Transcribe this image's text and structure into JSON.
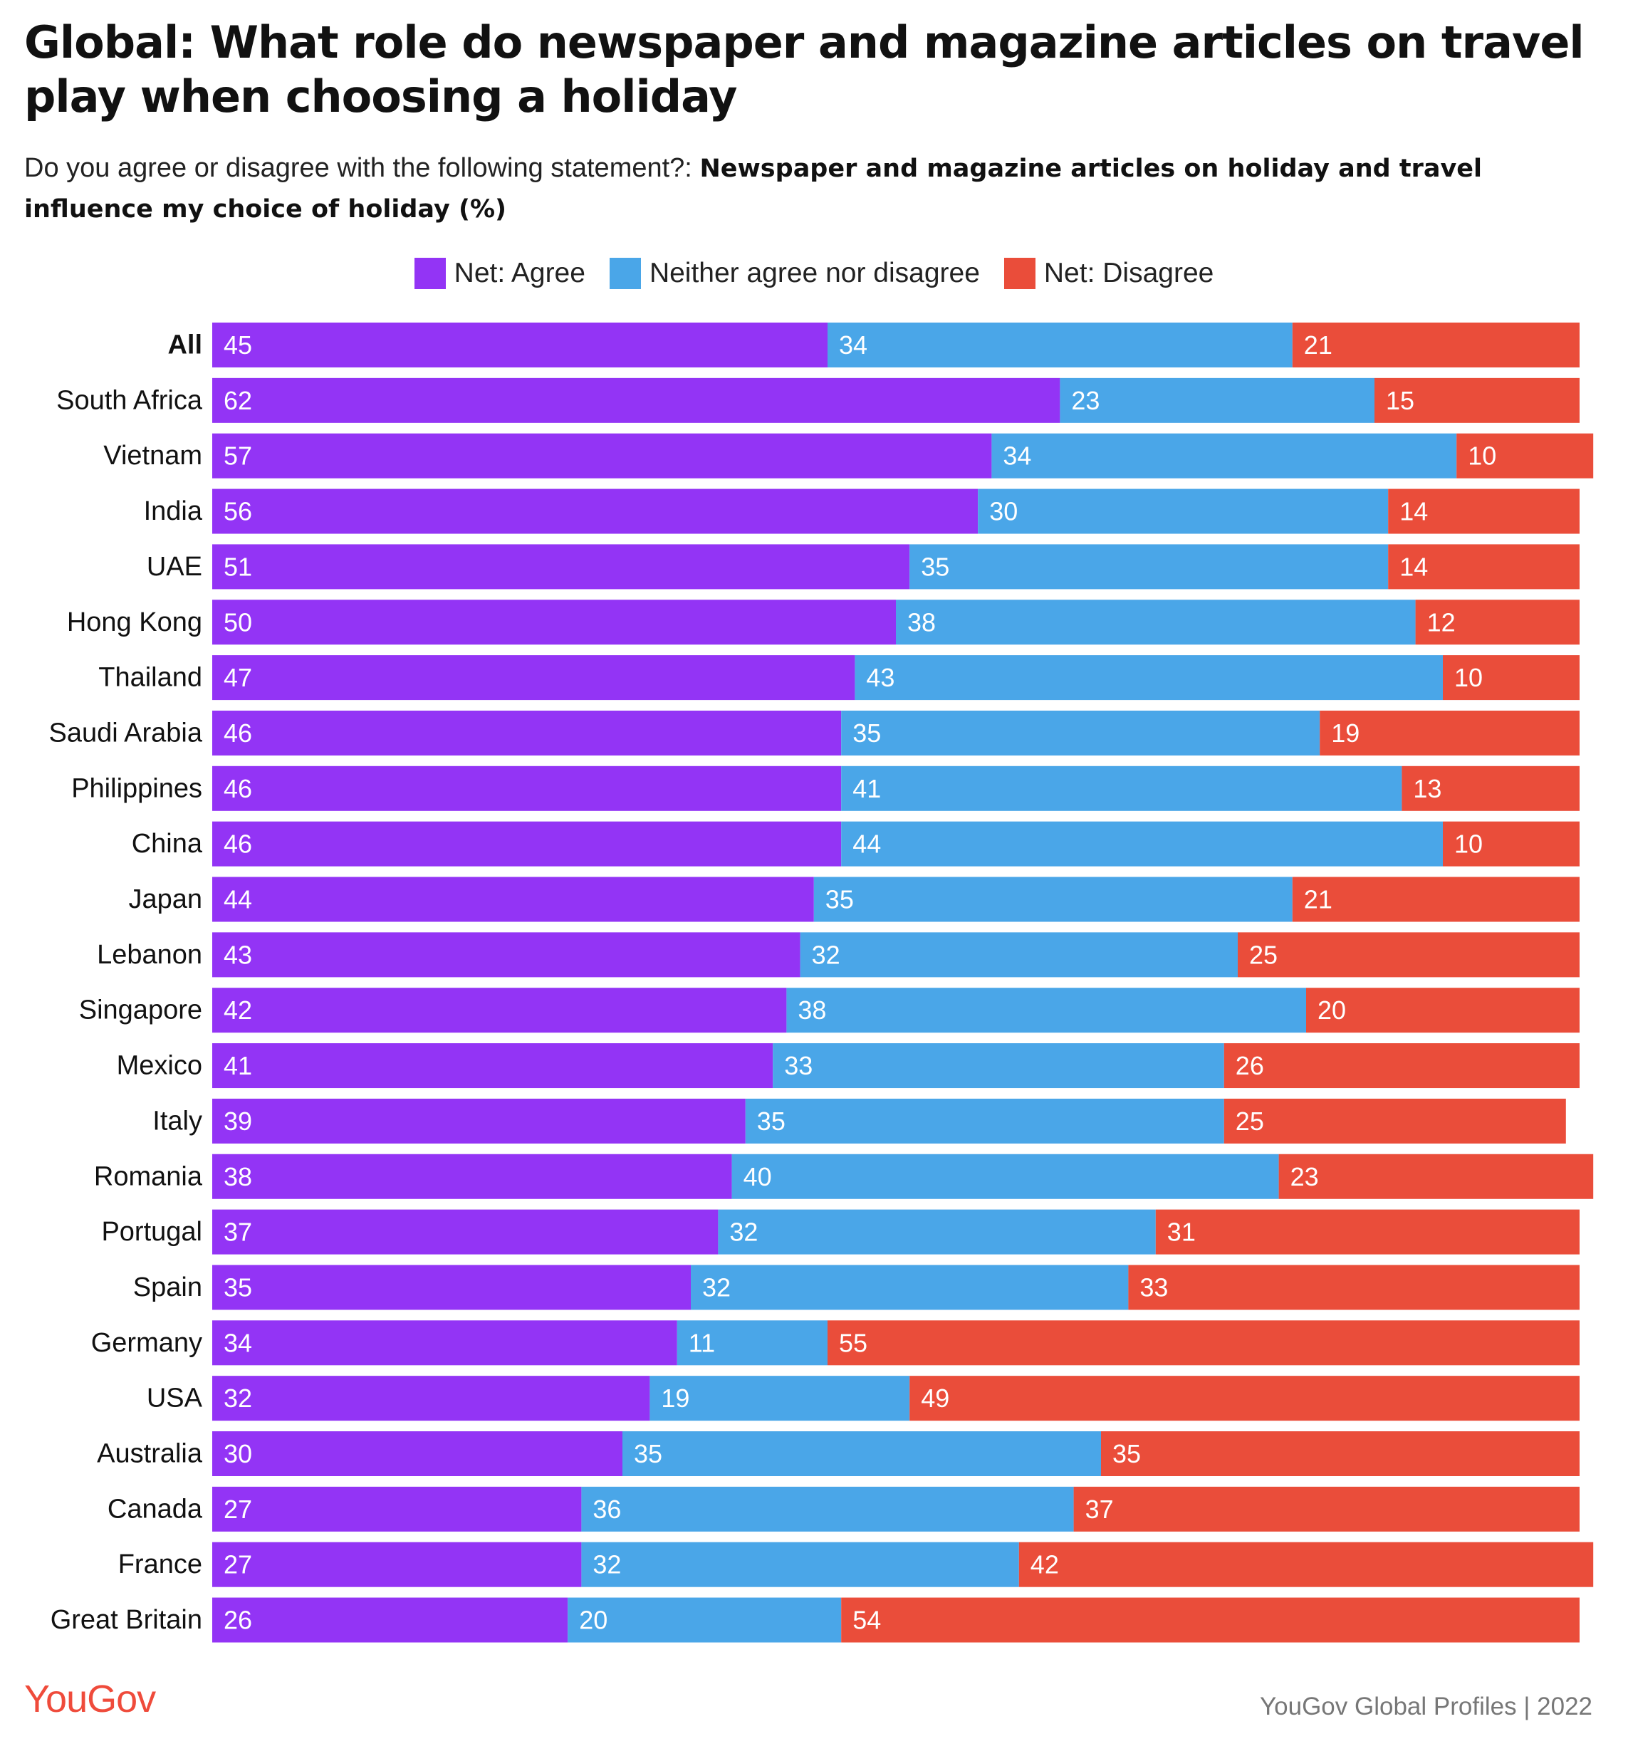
{
  "title": "Global: What role do newspaper and magazine articles on travel play when choosing a holiday",
  "subtitle": {
    "question": "Do you agree or disagree with the following statement?:",
    "statement": "Newspaper and magazine articles on holiday and travel influence my choice of holiday (%)"
  },
  "legend": [
    {
      "label": "Net: Agree",
      "color": "#9334f5"
    },
    {
      "label": "Neither agree nor disagree",
      "color": "#4aa6e8"
    },
    {
      "label": "Net: Disagree",
      "color": "#ea4d3a"
    }
  ],
  "chart_data": {
    "type": "bar",
    "orientation": "horizontal",
    "stacked": true,
    "title": "Global: What role do newspaper and magazine articles on travel play when choosing a holiday",
    "xlabel": "",
    "ylabel": "",
    "legend_position": "top-center",
    "grid": false,
    "value_labels": true,
    "categories": [
      "All",
      "South Africa",
      "Vietnam",
      "India",
      "UAE",
      "Hong Kong",
      "Thailand",
      "Saudi Arabia",
      "Philippines",
      "China",
      "Japan",
      "Lebanon",
      "Singapore",
      "Mexico",
      "Italy",
      "Romania",
      "Portugal",
      "Spain",
      "Germany",
      "USA",
      "Australia",
      "Canada",
      "France",
      "Great Britain"
    ],
    "bold_categories": [
      "All"
    ],
    "series": [
      {
        "name": "Net: Agree",
        "color": "#9334f5",
        "values": [
          45,
          62,
          57,
          56,
          51,
          50,
          47,
          46,
          46,
          46,
          44,
          43,
          42,
          41,
          39,
          38,
          37,
          35,
          34,
          32,
          30,
          27,
          27,
          26
        ]
      },
      {
        "name": "Neither agree nor disagree",
        "color": "#4aa6e8",
        "values": [
          34,
          23,
          34,
          30,
          35,
          38,
          43,
          35,
          41,
          44,
          35,
          32,
          38,
          33,
          35,
          40,
          32,
          32,
          11,
          19,
          35,
          36,
          32,
          20
        ]
      },
      {
        "name": "Net: Disagree",
        "color": "#ea4d3a",
        "values": [
          21,
          15,
          10,
          14,
          14,
          12,
          10,
          19,
          13,
          10,
          21,
          25,
          20,
          26,
          25,
          23,
          31,
          33,
          55,
          49,
          35,
          37,
          42,
          54
        ]
      }
    ]
  },
  "footer": {
    "logo": "YouGov",
    "source": "YouGov Global Profiles | 2022"
  }
}
